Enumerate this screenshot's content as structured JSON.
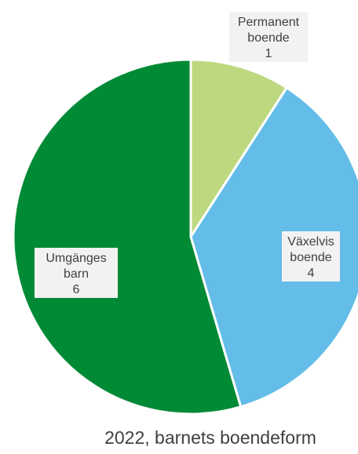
{
  "chart_data": {
    "type": "pie",
    "title": "2022, barnets boendeform",
    "slices": [
      {
        "label": [
          "Permanent",
          "boende"
        ],
        "value": 1,
        "color": "#bdd87f"
      },
      {
        "label": [
          "Växelvis",
          "boende"
        ],
        "value": 4,
        "color": "#64bde8"
      },
      {
        "label": [
          "Umgänges",
          "barn"
        ],
        "value": 6,
        "color": "#008a35"
      }
    ]
  }
}
